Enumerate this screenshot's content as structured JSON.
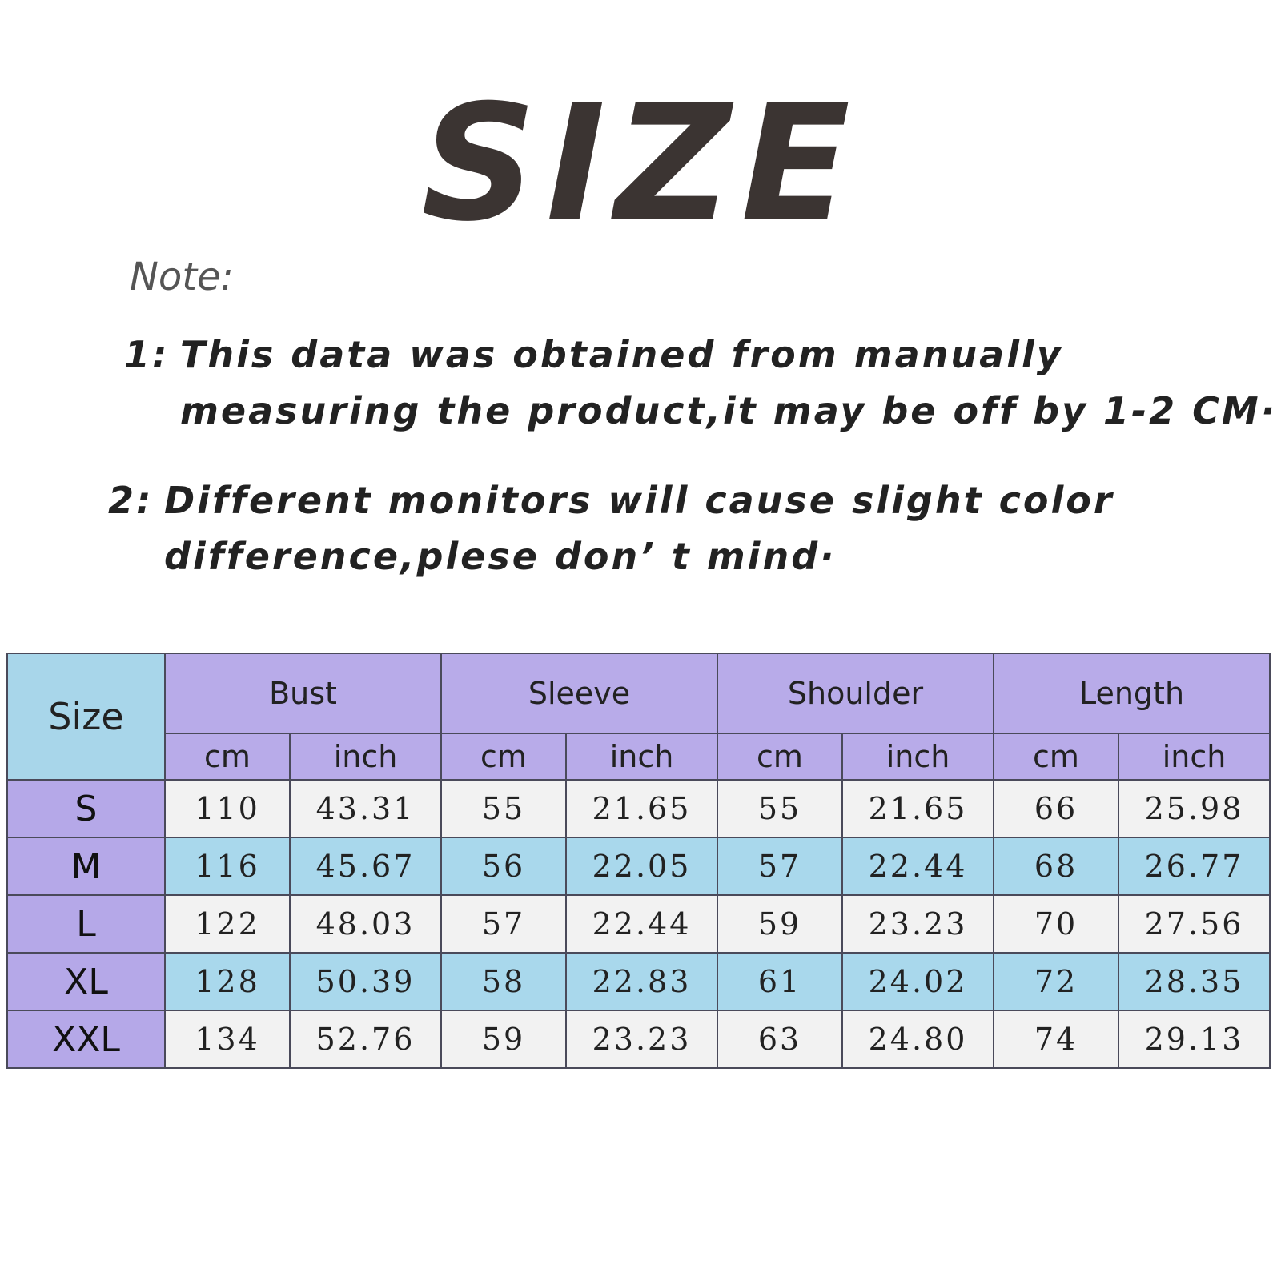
{
  "header": {
    "title": "SIZE"
  },
  "note": {
    "label": "Note:",
    "items": [
      {
        "number": "1:",
        "lines": [
          "This data was obtained from manually",
          "measuring the product,it may be off by 1-2 CM·"
        ]
      },
      {
        "number": "2:",
        "lines": [
          "Different monitors will cause slight color",
          "difference,plese don’ t mind·"
        ]
      }
    ]
  },
  "table": {
    "size_header": "Size",
    "groups": [
      {
        "name": "Bust",
        "units": [
          "cm",
          "inch"
        ]
      },
      {
        "name": "Sleeve",
        "units": [
          "cm",
          "inch"
        ]
      },
      {
        "name": "Shoulder",
        "units": [
          "cm",
          "inch"
        ]
      },
      {
        "name": "Length",
        "units": [
          "cm",
          "inch"
        ]
      }
    ],
    "rows": [
      {
        "size": "S",
        "values": [
          "110",
          "43.31",
          "55",
          "21.65",
          "55",
          "21.65",
          "66",
          "25.98"
        ]
      },
      {
        "size": "M",
        "values": [
          "116",
          "45.67",
          "56",
          "22.05",
          "57",
          "22.44",
          "68",
          "26.77"
        ]
      },
      {
        "size": "L",
        "values": [
          "122",
          "48.03",
          "57",
          "22.44",
          "59",
          "23.23",
          "70",
          "27.56"
        ]
      },
      {
        "size": "XL",
        "values": [
          "128",
          "50.39",
          "58",
          "22.83",
          "61",
          "24.02",
          "72",
          "28.35"
        ]
      },
      {
        "size": "XXL",
        "values": [
          "134",
          "52.76",
          "59",
          "23.23",
          "63",
          "24.80",
          "74",
          "29.13"
        ]
      }
    ]
  }
}
